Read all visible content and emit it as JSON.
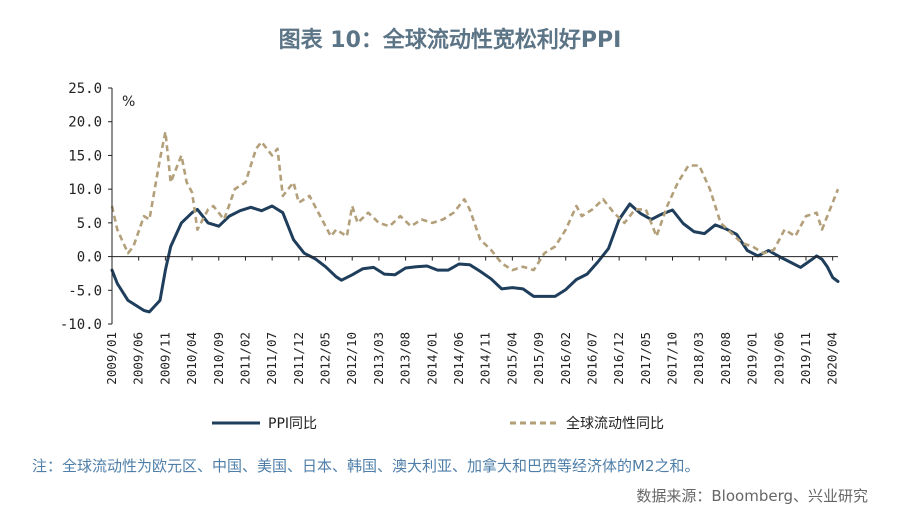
{
  "title": "图表 10：全球流动性宽松利好PPI",
  "note": "注：全球流动性为欧元区、中国、美国、日本、韩国、澳大利亚、加拿大和巴西等经济体的M2之和。",
  "source": "数据来源：Bloomberg、兴业研究",
  "colors": {
    "ppi": "#1f3e5c",
    "liquidity": "#b3a07a",
    "title": "#5b7486",
    "note": "#4f7fa8"
  },
  "chart_data": {
    "type": "line",
    "title": "图表 10：全球流动性宽松利好PPI",
    "ylabel": "%",
    "ylim": [
      -10,
      25
    ],
    "yticks": [
      "25.0",
      "20.0",
      "15.0",
      "10.0",
      "5.0",
      "0.0",
      "-5.0",
      "-10.0"
    ],
    "xtick_labels": [
      "2009/01",
      "2009/06",
      "2009/11",
      "2010/04",
      "2010/09",
      "2011/02",
      "2011/07",
      "2011/12",
      "2012/05",
      "2012/10",
      "2013/03",
      "2013/08",
      "2014/01",
      "2014/06",
      "2014/11",
      "2015/04",
      "2015/09",
      "2016/02",
      "2016/07",
      "2016/12",
      "2017/05",
      "2017/10",
      "2018/03",
      "2018/08",
      "2019/01",
      "2019/06",
      "2019/11",
      "2020/04"
    ],
    "x_start": "2009/01",
    "x_end": "2020/05",
    "legend": "bottom",
    "series": [
      {
        "name": "PPI同比",
        "style": "solid",
        "points": [
          [
            "2009/01",
            -2.0
          ],
          [
            "2009/02",
            -4.0
          ],
          [
            "2009/04",
            -6.5
          ],
          [
            "2009/07",
            -8.0
          ],
          [
            "2009/08",
            -8.2
          ],
          [
            "2009/10",
            -6.5
          ],
          [
            "2009/11",
            -2.0
          ],
          [
            "2009/12",
            1.5
          ],
          [
            "2010/02",
            5.0
          ],
          [
            "2010/04",
            6.5
          ],
          [
            "2010/05",
            7.0
          ],
          [
            "2010/07",
            5.0
          ],
          [
            "2010/09",
            4.5
          ],
          [
            "2010/11",
            6.0
          ],
          [
            "2011/01",
            6.8
          ],
          [
            "2011/03",
            7.3
          ],
          [
            "2011/05",
            6.8
          ],
          [
            "2011/07",
            7.5
          ],
          [
            "2011/09",
            6.5
          ],
          [
            "2011/11",
            2.5
          ],
          [
            "2012/01",
            0.5
          ],
          [
            "2012/03",
            -0.3
          ],
          [
            "2012/05",
            -1.5
          ],
          [
            "2012/07",
            -3.0
          ],
          [
            "2012/08",
            -3.5
          ],
          [
            "2012/10",
            -2.7
          ],
          [
            "2012/12",
            -1.8
          ],
          [
            "2013/02",
            -1.6
          ],
          [
            "2013/04",
            -2.6
          ],
          [
            "2013/06",
            -2.7
          ],
          [
            "2013/08",
            -1.7
          ],
          [
            "2013/10",
            -1.5
          ],
          [
            "2013/12",
            -1.4
          ],
          [
            "2014/02",
            -2.0
          ],
          [
            "2014/04",
            -2.0
          ],
          [
            "2014/06",
            -1.1
          ],
          [
            "2014/08",
            -1.2
          ],
          [
            "2014/10",
            -2.2
          ],
          [
            "2014/12",
            -3.3
          ],
          [
            "2015/02",
            -4.8
          ],
          [
            "2015/04",
            -4.6
          ],
          [
            "2015/06",
            -4.8
          ],
          [
            "2015/08",
            -5.9
          ],
          [
            "2015/10",
            -5.9
          ],
          [
            "2015/12",
            -5.9
          ],
          [
            "2016/02",
            -4.9
          ],
          [
            "2016/04",
            -3.4
          ],
          [
            "2016/06",
            -2.6
          ],
          [
            "2016/08",
            -0.8
          ],
          [
            "2016/10",
            1.2
          ],
          [
            "2016/12",
            5.5
          ],
          [
            "2017/02",
            7.8
          ],
          [
            "2017/04",
            6.4
          ],
          [
            "2017/06",
            5.5
          ],
          [
            "2017/08",
            6.3
          ],
          [
            "2017/10",
            6.9
          ],
          [
            "2017/12",
            4.9
          ],
          [
            "2018/02",
            3.7
          ],
          [
            "2018/04",
            3.4
          ],
          [
            "2018/06",
            4.7
          ],
          [
            "2018/08",
            4.1
          ],
          [
            "2018/10",
            3.3
          ],
          [
            "2018/12",
            0.9
          ],
          [
            "2019/02",
            0.1
          ],
          [
            "2019/04",
            0.9
          ],
          [
            "2019/06",
            0.0
          ],
          [
            "2019/08",
            -0.8
          ],
          [
            "2019/10",
            -1.6
          ],
          [
            "2019/12",
            -0.5
          ],
          [
            "2020/01",
            0.1
          ],
          [
            "2020/02",
            -0.4
          ],
          [
            "2020/03",
            -1.5
          ],
          [
            "2020/04",
            -3.1
          ],
          [
            "2020/05",
            -3.7
          ]
        ]
      },
      {
        "name": "全球流动性同比",
        "style": "dashed",
        "points": [
          [
            "2009/01",
            7.5
          ],
          [
            "2009/02",
            4.0
          ],
          [
            "2009/04",
            0.5
          ],
          [
            "2009/05",
            1.5
          ],
          [
            "2009/07",
            6.0
          ],
          [
            "2009/08",
            5.5
          ],
          [
            "2009/10",
            14.5
          ],
          [
            "2009/11",
            18.5
          ],
          [
            "2009/12",
            11.0
          ],
          [
            "2010/02",
            15.0
          ],
          [
            "2010/03",
            11.0
          ],
          [
            "2010/04",
            9.5
          ],
          [
            "2010/05",
            4.0
          ],
          [
            "2010/07",
            7.0
          ],
          [
            "2010/08",
            7.5
          ],
          [
            "2010/10",
            5.5
          ],
          [
            "2010/12",
            10.0
          ],
          [
            "2011/02",
            11.0
          ],
          [
            "2011/04",
            16.0
          ],
          [
            "2011/05",
            17.0
          ],
          [
            "2011/07",
            15.0
          ],
          [
            "2011/08",
            16.0
          ],
          [
            "2011/09",
            9.0
          ],
          [
            "2011/11",
            11.0
          ],
          [
            "2011/12",
            8.0
          ],
          [
            "2012/02",
            9.0
          ],
          [
            "2012/04",
            6.0
          ],
          [
            "2012/06",
            3.0
          ],
          [
            "2012/07",
            4.0
          ],
          [
            "2012/09",
            3.0
          ],
          [
            "2012/10",
            7.5
          ],
          [
            "2012/11",
            5.0
          ],
          [
            "2013/01",
            6.5
          ],
          [
            "2013/03",
            5.0
          ],
          [
            "2013/05",
            4.5
          ],
          [
            "2013/07",
            6.0
          ],
          [
            "2013/09",
            4.5
          ],
          [
            "2013/11",
            5.5
          ],
          [
            "2014/01",
            5.0
          ],
          [
            "2014/03",
            5.5
          ],
          [
            "2014/05",
            6.5
          ],
          [
            "2014/07",
            8.5
          ],
          [
            "2014/08",
            7.0
          ],
          [
            "2014/10",
            2.5
          ],
          [
            "2014/12",
            1.0
          ],
          [
            "2015/02",
            -1.0
          ],
          [
            "2015/04",
            -2.0
          ],
          [
            "2015/06",
            -1.5
          ],
          [
            "2015/08",
            -2.0
          ],
          [
            "2015/10",
            0.5
          ],
          [
            "2015/12",
            1.5
          ],
          [
            "2016/02",
            4.0
          ],
          [
            "2016/04",
            7.5
          ],
          [
            "2016/05",
            6.0
          ],
          [
            "2016/07",
            7.0
          ],
          [
            "2016/09",
            8.5
          ],
          [
            "2016/11",
            6.5
          ],
          [
            "2017/01",
            5.0
          ],
          [
            "2017/03",
            7.0
          ],
          [
            "2017/05",
            7.0
          ],
          [
            "2017/07",
            3.0
          ],
          [
            "2017/09",
            7.5
          ],
          [
            "2017/11",
            11.0
          ],
          [
            "2018/01",
            13.5
          ],
          [
            "2018/03",
            13.5
          ],
          [
            "2018/05",
            10.0
          ],
          [
            "2018/07",
            5.0
          ],
          [
            "2018/09",
            3.5
          ],
          [
            "2018/11",
            2.0
          ],
          [
            "2019/01",
            1.5
          ],
          [
            "2019/03",
            0.5
          ],
          [
            "2019/05",
            1.0
          ],
          [
            "2019/07",
            4.0
          ],
          [
            "2019/09",
            3.0
          ],
          [
            "2019/11",
            6.0
          ],
          [
            "2020/01",
            6.5
          ],
          [
            "2020/02",
            4.0
          ],
          [
            "2020/03",
            6.0
          ],
          [
            "2020/04",
            8.0
          ],
          [
            "2020/05",
            10.0
          ]
        ]
      }
    ]
  }
}
